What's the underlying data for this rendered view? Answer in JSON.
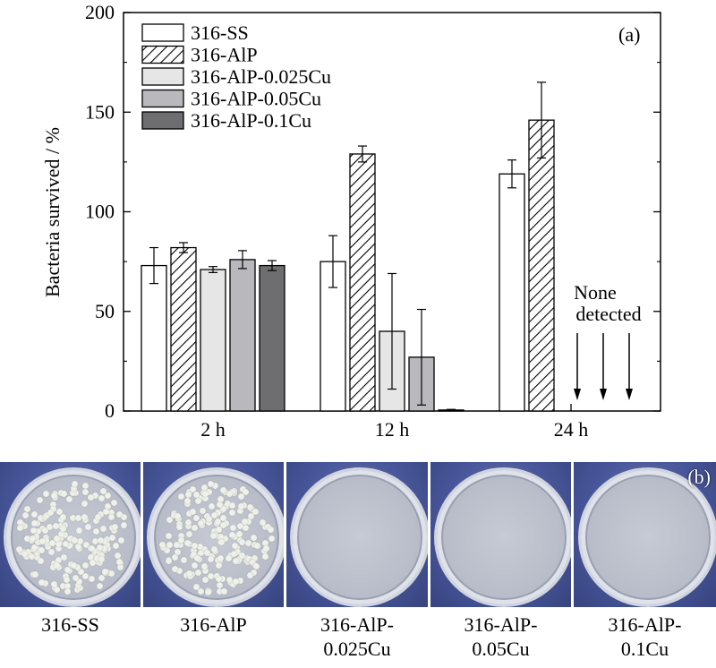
{
  "chart_data": {
    "type": "bar",
    "panel_label": "(a)",
    "ylabel": "Bacteria survived / %",
    "xlabel": "",
    "ylim": [
      0,
      200
    ],
    "yticks": [
      0,
      50,
      100,
      150,
      200
    ],
    "categories": [
      "2 h",
      "12 h",
      "24 h"
    ],
    "series": [
      {
        "name": "316-SS",
        "fill": "none",
        "values": [
          73,
          75,
          119
        ],
        "errors": [
          9,
          13,
          7
        ]
      },
      {
        "name": "316-AlP",
        "fill": "hatch",
        "values": [
          82,
          129,
          146
        ],
        "errors": [
          2.5,
          4,
          19
        ]
      },
      {
        "name": "316-AlP-0.025Cu",
        "fill": "#e6e6e6",
        "values": [
          71,
          40,
          null
        ],
        "errors": [
          1.5,
          29,
          null
        ]
      },
      {
        "name": "316-AlP-0.05Cu",
        "fill": "#b9b9bd",
        "values": [
          76,
          27,
          null
        ],
        "errors": [
          4.5,
          24,
          null
        ]
      },
      {
        "name": "316-AlP-0.1Cu",
        "fill": "#6e6e70",
        "values": [
          73,
          0.5,
          null
        ],
        "errors": [
          2.5,
          0.3,
          null
        ]
      }
    ],
    "annotation": {
      "line1": "None",
      "line2": "detected",
      "arrows": 3
    },
    "legend_position": "top-left",
    "grid": false
  },
  "plates": {
    "panel_label": "(b)",
    "items": [
      {
        "caption": "316-SS",
        "colonies": true
      },
      {
        "caption": "316-AlP",
        "colonies": true
      },
      {
        "caption": "316-AlP-\n0.025Cu",
        "colonies": false
      },
      {
        "caption": "316-AlP-\n0.05Cu",
        "colonies": false
      },
      {
        "caption": "316-AlP-\n0.1Cu",
        "colonies": false
      }
    ]
  }
}
